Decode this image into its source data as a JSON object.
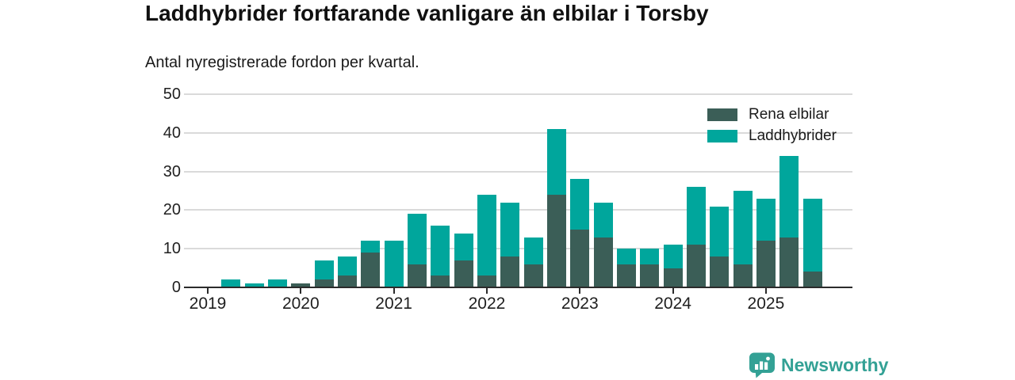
{
  "header": {
    "title": "Laddhybrider fortfarande vanligare än elbilar i Torsby",
    "subtitle": "Antal nyregistrerade fordon per kvartal."
  },
  "colors": {
    "elbilar": "#3b5e57",
    "laddhybrider": "#00a69c",
    "grid": "#dadada",
    "axis": "#2b2b2b",
    "text": "#1f1f1f",
    "brand": "#33a195"
  },
  "legend": {
    "items": [
      {
        "label": "Rena elbilar",
        "color_key": "elbilar"
      },
      {
        "label": "Laddhybrider",
        "color_key": "laddhybrider"
      }
    ]
  },
  "footer": {
    "brand": "Newsworthy",
    "logo_icon": "bar-chart-speech-bubble-icon"
  },
  "chart_data": {
    "type": "bar",
    "stacked": true,
    "title": "Laddhybrider fortfarande vanligare än elbilar i Torsby",
    "subtitle": "Antal nyregistrerade fordon per kvartal.",
    "x": [
      "2019 Q1",
      "2019 Q2",
      "2019 Q3",
      "2019 Q4",
      "2020 Q1",
      "2020 Q2",
      "2020 Q3",
      "2020 Q4",
      "2021 Q1",
      "2021 Q2",
      "2021 Q3",
      "2021 Q4",
      "2022 Q1",
      "2022 Q2",
      "2022 Q3",
      "2022 Q4",
      "2023 Q1",
      "2023 Q2",
      "2023 Q3",
      "2023 Q4",
      "2024 Q1",
      "2024 Q2",
      "2024 Q3",
      "2024 Q4",
      "2025 Q1",
      "2025 Q2",
      "2025 Q3"
    ],
    "series": [
      {
        "name": "Rena elbilar",
        "values": [
          0,
          0,
          0,
          0,
          1,
          2,
          3,
          9,
          0,
          6,
          3,
          7,
          3,
          8,
          6,
          24,
          15,
          13,
          6,
          6,
          5,
          11,
          8,
          6,
          12,
          13,
          4
        ]
      },
      {
        "name": "Laddhybrider",
        "values": [
          0,
          2,
          1,
          2,
          0,
          5,
          5,
          3,
          12,
          13,
          13,
          7,
          21,
          14,
          7,
          17,
          13,
          9,
          4,
          4,
          6,
          15,
          13,
          19,
          11,
          21,
          19
        ]
      }
    ],
    "totals": [
      0,
      2,
      1,
      2,
      1,
      7,
      8,
      12,
      12,
      19,
      16,
      14,
      24,
      22,
      13,
      41,
      28,
      22,
      10,
      10,
      11,
      26,
      21,
      25,
      23,
      34,
      23
    ],
    "ylim": [
      0,
      50
    ],
    "yticks": [
      0,
      10,
      20,
      30,
      40,
      50
    ],
    "xticks": [
      "2019",
      "2020",
      "2021",
      "2022",
      "2023",
      "2024",
      "2025"
    ],
    "grid": true,
    "legend_position": "top-right"
  }
}
